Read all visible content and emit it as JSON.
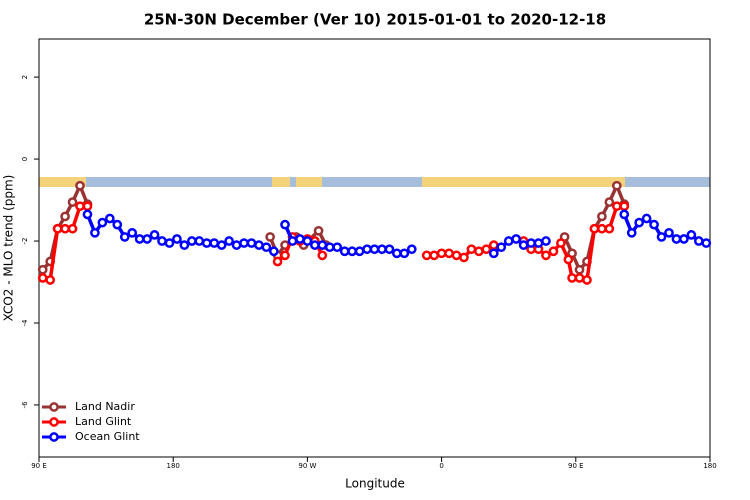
{
  "chart_data": {
    "type": "line",
    "title": "25N-30N December (Ver 10)   2015-01-01 to 2020-12-18",
    "x_label": "Longitude",
    "y_label": "XCO2 - MLO trend (ppm)",
    "xlim": [
      90,
      540
    ],
    "ylim": [
      -7.27,
      2.93
    ],
    "xticks": [
      {
        "value": 90,
        "label": "90 E"
      },
      180,
      {
        "value": 270,
        "label": "90 W"
      },
      {
        "value": 360,
        "label": "0"
      },
      {
        "value": 450,
        "label": "90 E"
      },
      {
        "value": 540,
        "label": "180"
      }
    ],
    "yticks": [
      -6,
      -4,
      -2,
      0,
      2
    ],
    "legend": "bottom-left",
    "series": [
      {
        "name": "Land Nadir",
        "color": "#993333",
        "x": [
          92.5,
          97.5,
          102.5,
          107.5,
          112.5,
          117.5,
          122.5,
          null,
          245,
          250,
          255,
          262.5,
          267.5,
          277.5,
          282.5,
          null,
          442.5,
          447.5,
          452.5,
          457.5,
          462.5,
          467.5,
          472.5,
          477.5,
          482.5
        ],
        "values": [
          -2.7,
          -2.5,
          -1.7,
          -1.4,
          -1.05,
          -0.65,
          -1.1,
          null,
          -1.9,
          -2.35,
          -2.1,
          -1.9,
          -2.1,
          -1.75,
          -2.1,
          null,
          -1.9,
          -2.3,
          -2.7,
          -2.5,
          -1.7,
          -1.4,
          -1.05,
          -0.65,
          -1.1
        ]
      },
      {
        "name": "Land Glint",
        "color": "#ff0000",
        "x": [
          92.5,
          97.5,
          102.5,
          107.5,
          112.5,
          117.5,
          122.5,
          null,
          250,
          255,
          260,
          265,
          270,
          275,
          280,
          null,
          350,
          355,
          360,
          365,
          370,
          375,
          380,
          385,
          390,
          395,
          null,
          415,
          420,
          425,
          430,
          435,
          440,
          445,
          447.5,
          452.5,
          457.5,
          462.5,
          467.5,
          472.5,
          477.5,
          482.5
        ],
        "values": [
          -2.9,
          -2.95,
          -1.7,
          -1.7,
          -1.7,
          -1.15,
          -1.15,
          null,
          -2.5,
          -2.35,
          -1.9,
          -2.0,
          -1.95,
          -2.0,
          -2.35,
          null,
          -2.35,
          -2.35,
          -2.3,
          -2.3,
          -2.35,
          -2.4,
          -2.2,
          -2.25,
          -2.2,
          -2.1,
          null,
          -2.0,
          -2.2,
          -2.2,
          -2.35,
          -2.25,
          -2.05,
          -2.45,
          -2.9,
          -2.9,
          -2.95,
          -1.7,
          -1.7,
          -1.7,
          -1.15,
          -1.15
        ]
      },
      {
        "name": "Ocean Glint",
        "color": "#0000ff",
        "x": [
          122.5,
          127.5,
          132.5,
          137.5,
          142.5,
          147.5,
          152.5,
          157.5,
          162.5,
          167.5,
          172.5,
          177.5,
          182.5,
          187.5,
          192.5,
          197.5,
          202.5,
          207.5,
          212.5,
          217.5,
          222.5,
          227.5,
          232.5,
          237.5,
          242.5,
          247.5,
          null,
          255,
          260,
          265,
          270,
          275,
          280,
          285,
          290,
          295,
          300,
          305,
          310,
          315,
          320,
          325,
          330,
          335,
          340,
          null,
          395,
          400,
          405,
          410,
          415,
          420,
          425,
          430,
          null,
          482.5,
          487.5,
          492.5,
          497.5,
          502.5,
          507.5,
          512.5,
          517.5,
          522.5,
          527.5,
          532.5,
          537.5
        ],
        "values": [
          -1.35,
          -1.8,
          -1.55,
          -1.45,
          -1.6,
          -1.9,
          -1.8,
          -1.95,
          -1.95,
          -1.85,
          -2.0,
          -2.05,
          -1.95,
          -2.1,
          -2.0,
          -2.0,
          -2.05,
          -2.05,
          -2.1,
          -2.0,
          -2.1,
          -2.05,
          -2.05,
          -2.1,
          -2.15,
          -2.25,
          null,
          -1.6,
          -2.0,
          -1.95,
          -2.0,
          -2.1,
          -2.1,
          -2.15,
          -2.15,
          -2.25,
          -2.25,
          -2.25,
          -2.2,
          -2.2,
          -2.2,
          -2.2,
          -2.3,
          -2.3,
          -2.2,
          null,
          -2.3,
          -2.15,
          -2.0,
          -1.95,
          -2.1,
          -2.05,
          -2.05,
          -2.0,
          null,
          -1.35,
          -1.8,
          -1.55,
          -1.45,
          -1.6,
          -1.9,
          -1.8,
          -1.95,
          -1.95,
          -1.85,
          -2.0,
          -2.05
        ]
      }
    ]
  }
}
